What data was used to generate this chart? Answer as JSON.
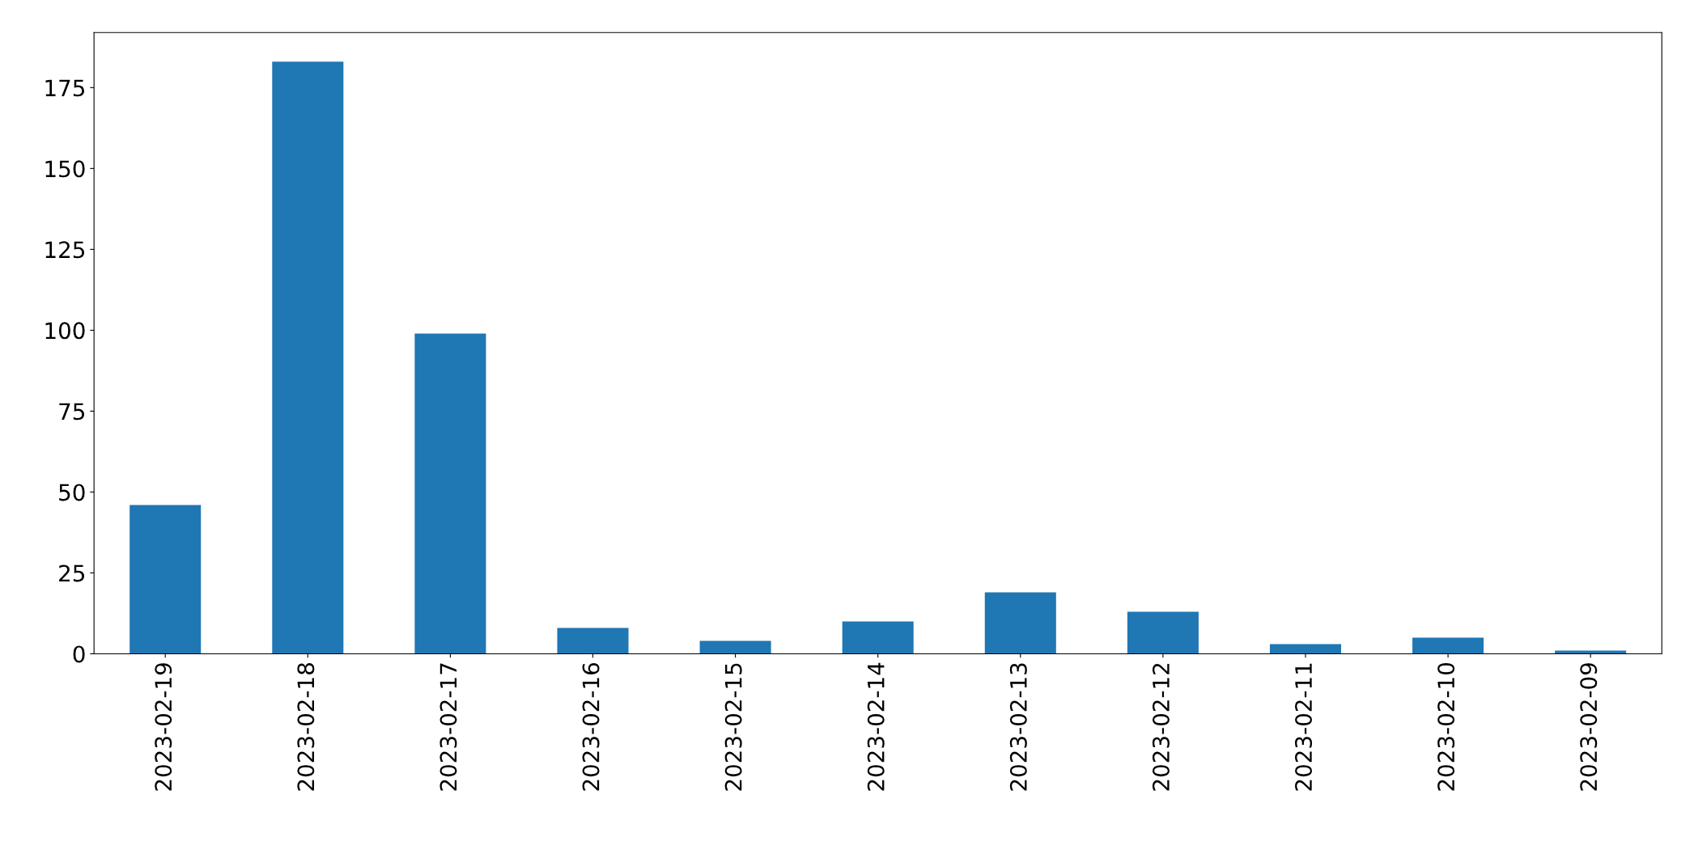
{
  "chart_data": {
    "type": "bar",
    "categories": [
      "2023-02-19",
      "2023-02-18",
      "2023-02-17",
      "2023-02-16",
      "2023-02-15",
      "2023-02-14",
      "2023-02-13",
      "2023-02-12",
      "2023-02-11",
      "2023-02-10",
      "2023-02-09"
    ],
    "values": [
      46,
      183,
      99,
      8,
      4,
      10,
      19,
      13,
      3,
      5,
      1
    ],
    "color": "#1f77b4",
    "ylim": [
      0,
      192
    ],
    "yticks": [
      0,
      25,
      50,
      75,
      100,
      125,
      150,
      175
    ],
    "grid": false,
    "legend": false
  }
}
